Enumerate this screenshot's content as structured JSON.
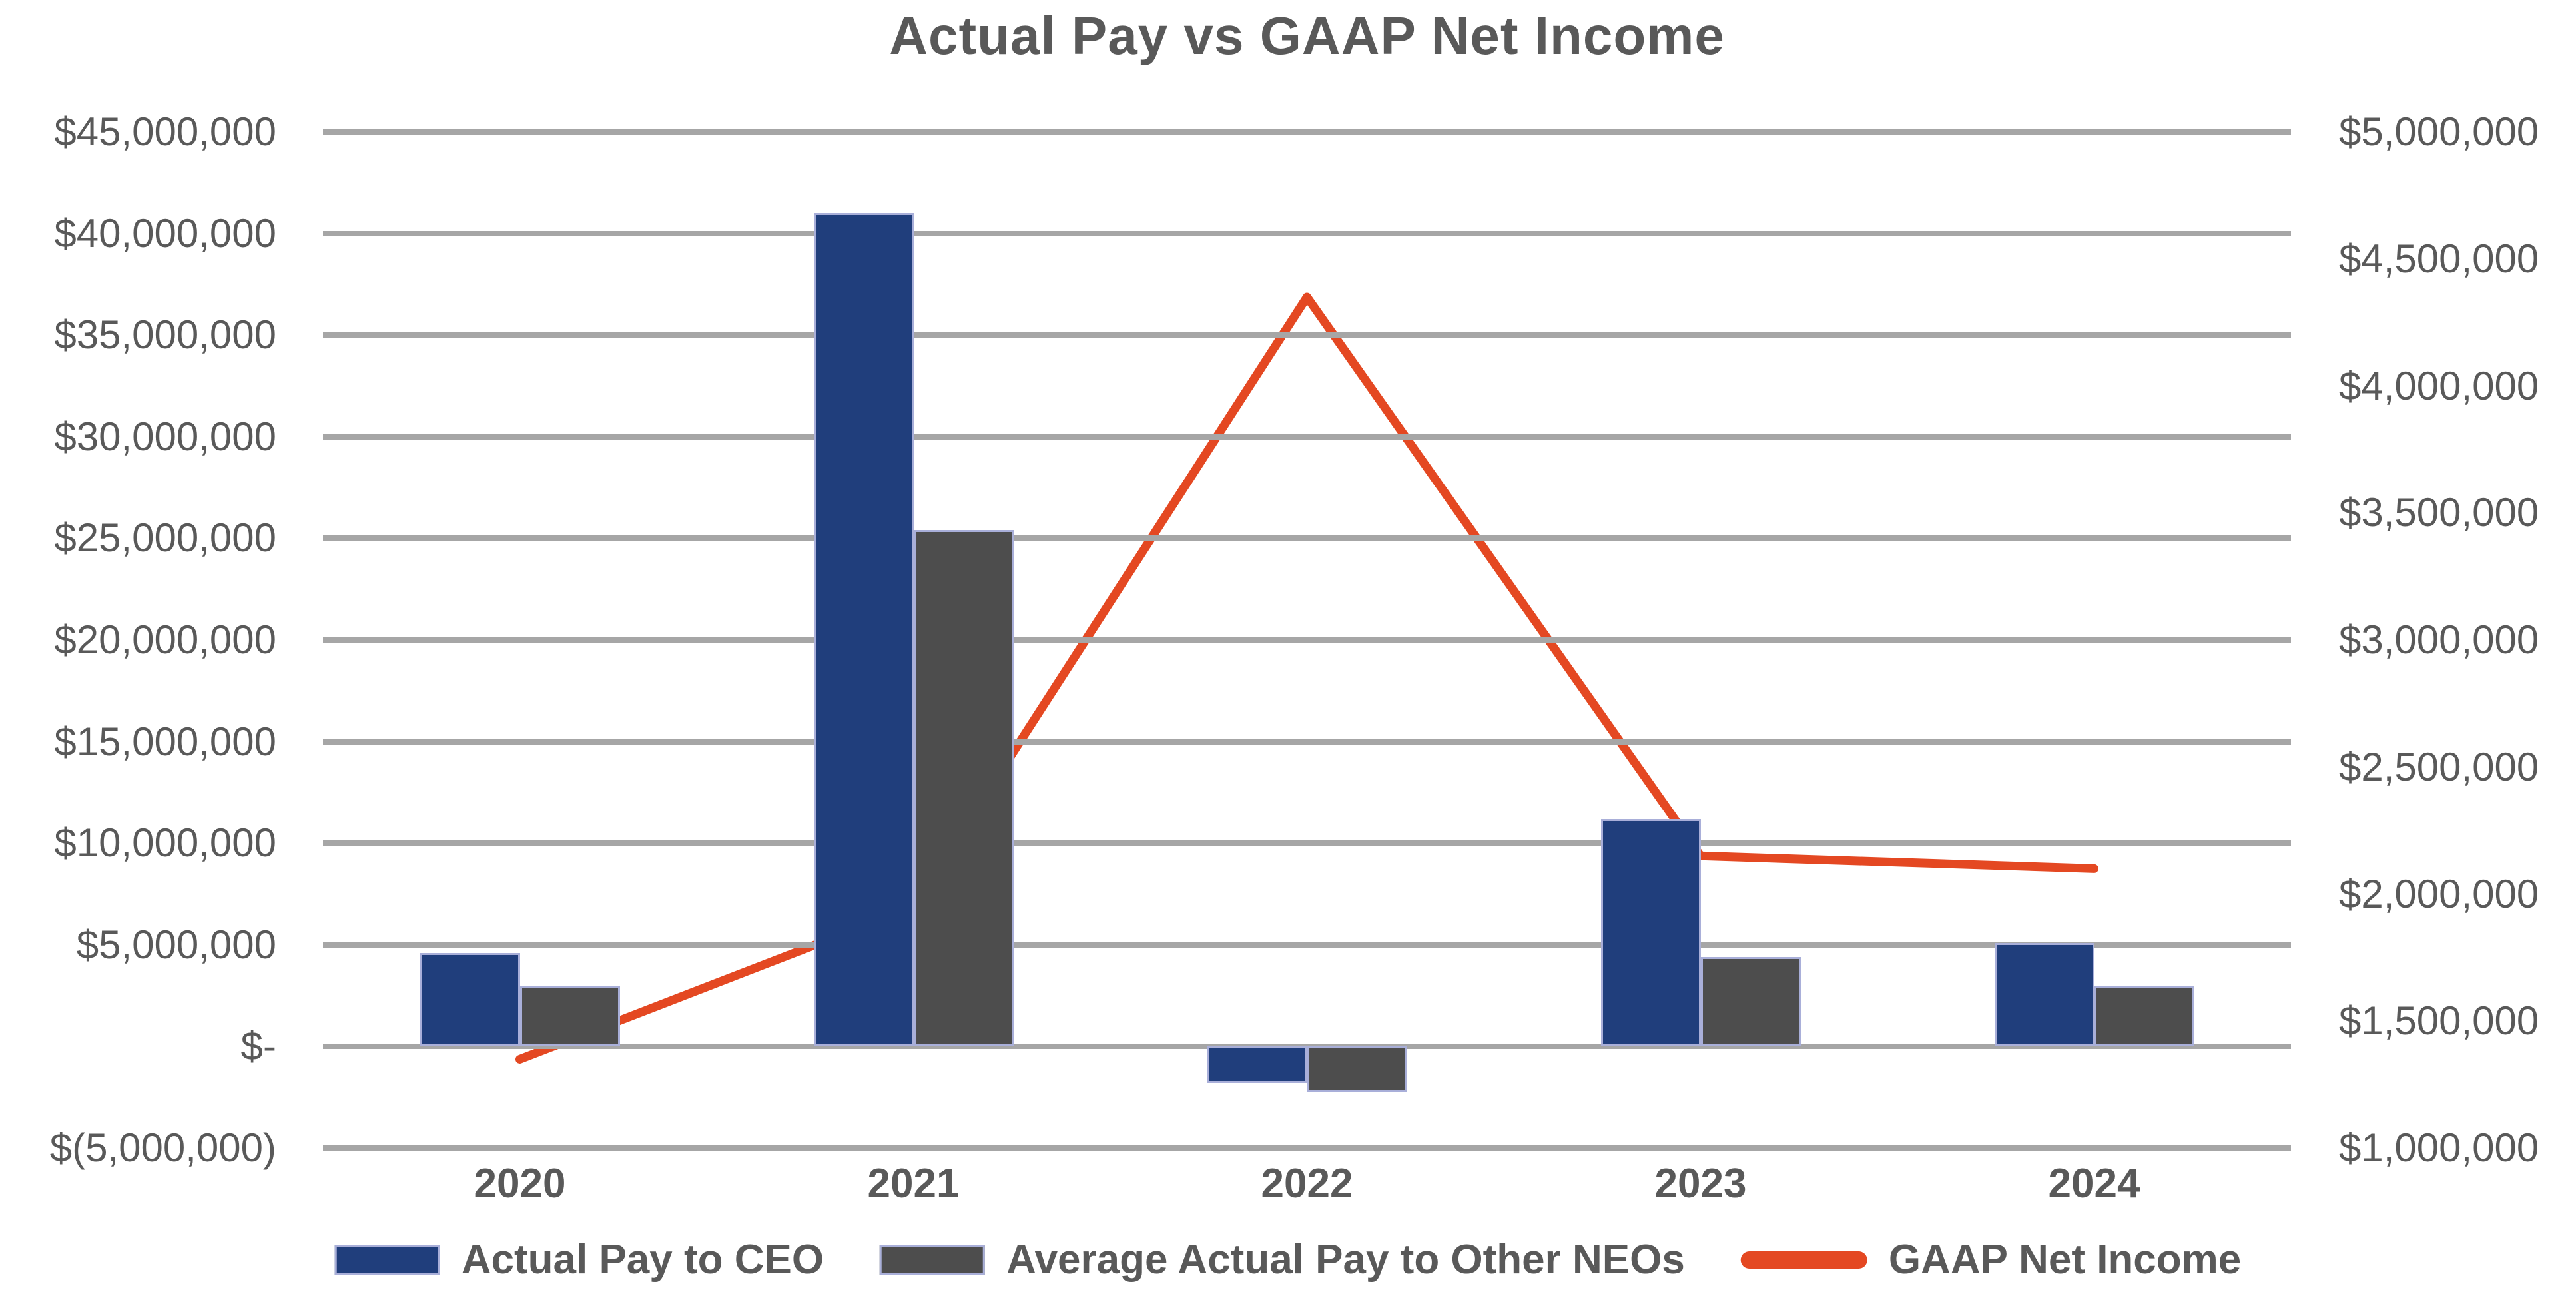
{
  "title": "Actual Pay vs GAAP Net Income",
  "colors": {
    "text": "#595959",
    "gridline": "#A6A6A6",
    "bar_border": "#A9AFD9",
    "ceo_blue": "#203E7C",
    "neo_gray": "#4D4D4D",
    "gaap_red": "#E44822",
    "background": "#FFFFFF"
  },
  "legend": {
    "position": "bottom",
    "items": [
      {
        "label": "Actual Pay to CEO",
        "swatch": "bar",
        "color_key": "ceo_blue"
      },
      {
        "label": "Average Actual Pay to Other NEOs",
        "swatch": "bar",
        "color_key": "neo_gray"
      },
      {
        "label": "GAAP Net Income",
        "swatch": "line",
        "color_key": "gaap_red"
      }
    ]
  },
  "chart_data": {
    "type": "bar",
    "subtype": "combo-bar-line-dual-axis",
    "title": "Actual Pay vs GAAP Net Income",
    "categories": [
      "2020",
      "2021",
      "2022",
      "2023",
      "2024"
    ],
    "series": [
      {
        "name": "Actual Pay to CEO",
        "type": "bar",
        "axis": "left",
        "color": "#203E7C",
        "values": [
          4600000,
          41000000,
          -1800000,
          11200000,
          5100000
        ]
      },
      {
        "name": "Average Actual Pay to Other NEOs",
        "type": "bar",
        "axis": "left",
        "color": "#4D4D4D",
        "values": [
          3000000,
          25400000,
          -2200000,
          4400000,
          3000000
        ]
      },
      {
        "name": "GAAP Net Income",
        "type": "line",
        "axis": "right",
        "color": "#E44822",
        "values": [
          1350000,
          1950000,
          4350000,
          2150000,
          2100000
        ]
      }
    ],
    "axes": {
      "left": {
        "min": -5000000,
        "max": 45000000,
        "step": 5000000,
        "tick_labels_top_to_bottom": [
          "$45,000,000",
          "$40,000,000",
          "$35,000,000",
          "$30,000,000",
          "$25,000,000",
          "$20,000,000",
          "$15,000,000",
          "$10,000,000",
          "$5,000,000",
          "$-",
          "$(5,000,000)"
        ]
      },
      "right": {
        "min": 1000000,
        "max": 5000000,
        "step": 500000,
        "tick_labels_top_to_bottom": [
          "$5,000,000",
          "$4,500,000",
          "$4,000,000",
          "$3,500,000",
          "$3,000,000",
          "$2,500,000",
          "$2,000,000",
          "$1,500,000",
          "$1,000,000"
        ]
      }
    },
    "grid": true,
    "legend_position": "bottom",
    "xlabel": "",
    "ylabel_left": "",
    "ylabel_right": ""
  }
}
